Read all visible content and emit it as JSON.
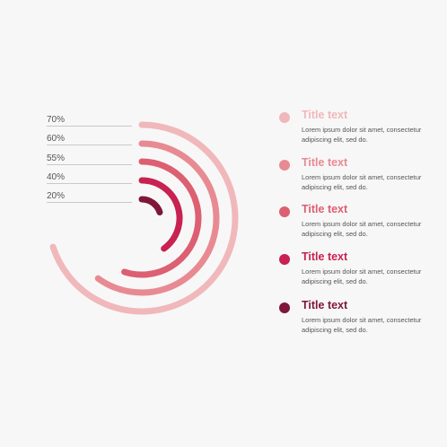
{
  "chart_data": {
    "type": "radial-bar",
    "max": 100,
    "series": [
      {
        "label": "70%",
        "value": 70,
        "color": "#f0b8ba"
      },
      {
        "label": "60%",
        "value": 60,
        "color": "#e88a92"
      },
      {
        "label": "55%",
        "value": 55,
        "color": "#dc5f72"
      },
      {
        "label": "40%",
        "value": 40,
        "color": "#c72251"
      },
      {
        "label": "20%",
        "value": 20,
        "color": "#7e1738"
      }
    ]
  },
  "legend": [
    {
      "title": "Title text",
      "desc": "Lorem ipsum dolor sit amet, consectetur adipiscing elit, sed do.",
      "color": "#f0b8ba"
    },
    {
      "title": "Title text",
      "desc": "Lorem ipsum dolor sit amet, consectetur adipiscing elit, sed do.",
      "color": "#e88a92"
    },
    {
      "title": "Title text",
      "desc": "Lorem ipsum dolor sit amet, consectetur adipiscing elit, sed do.",
      "color": "#dc5f72"
    },
    {
      "title": "Title text",
      "desc": "Lorem ipsum dolor sit amet, consectetur adipiscing elit, sed do.",
      "color": "#c72251"
    },
    {
      "title": "Title text",
      "desc": "Lorem ipsum dolor sit amet, consectetur adipiscing elit, sed do.",
      "color": "#7e1738"
    }
  ]
}
